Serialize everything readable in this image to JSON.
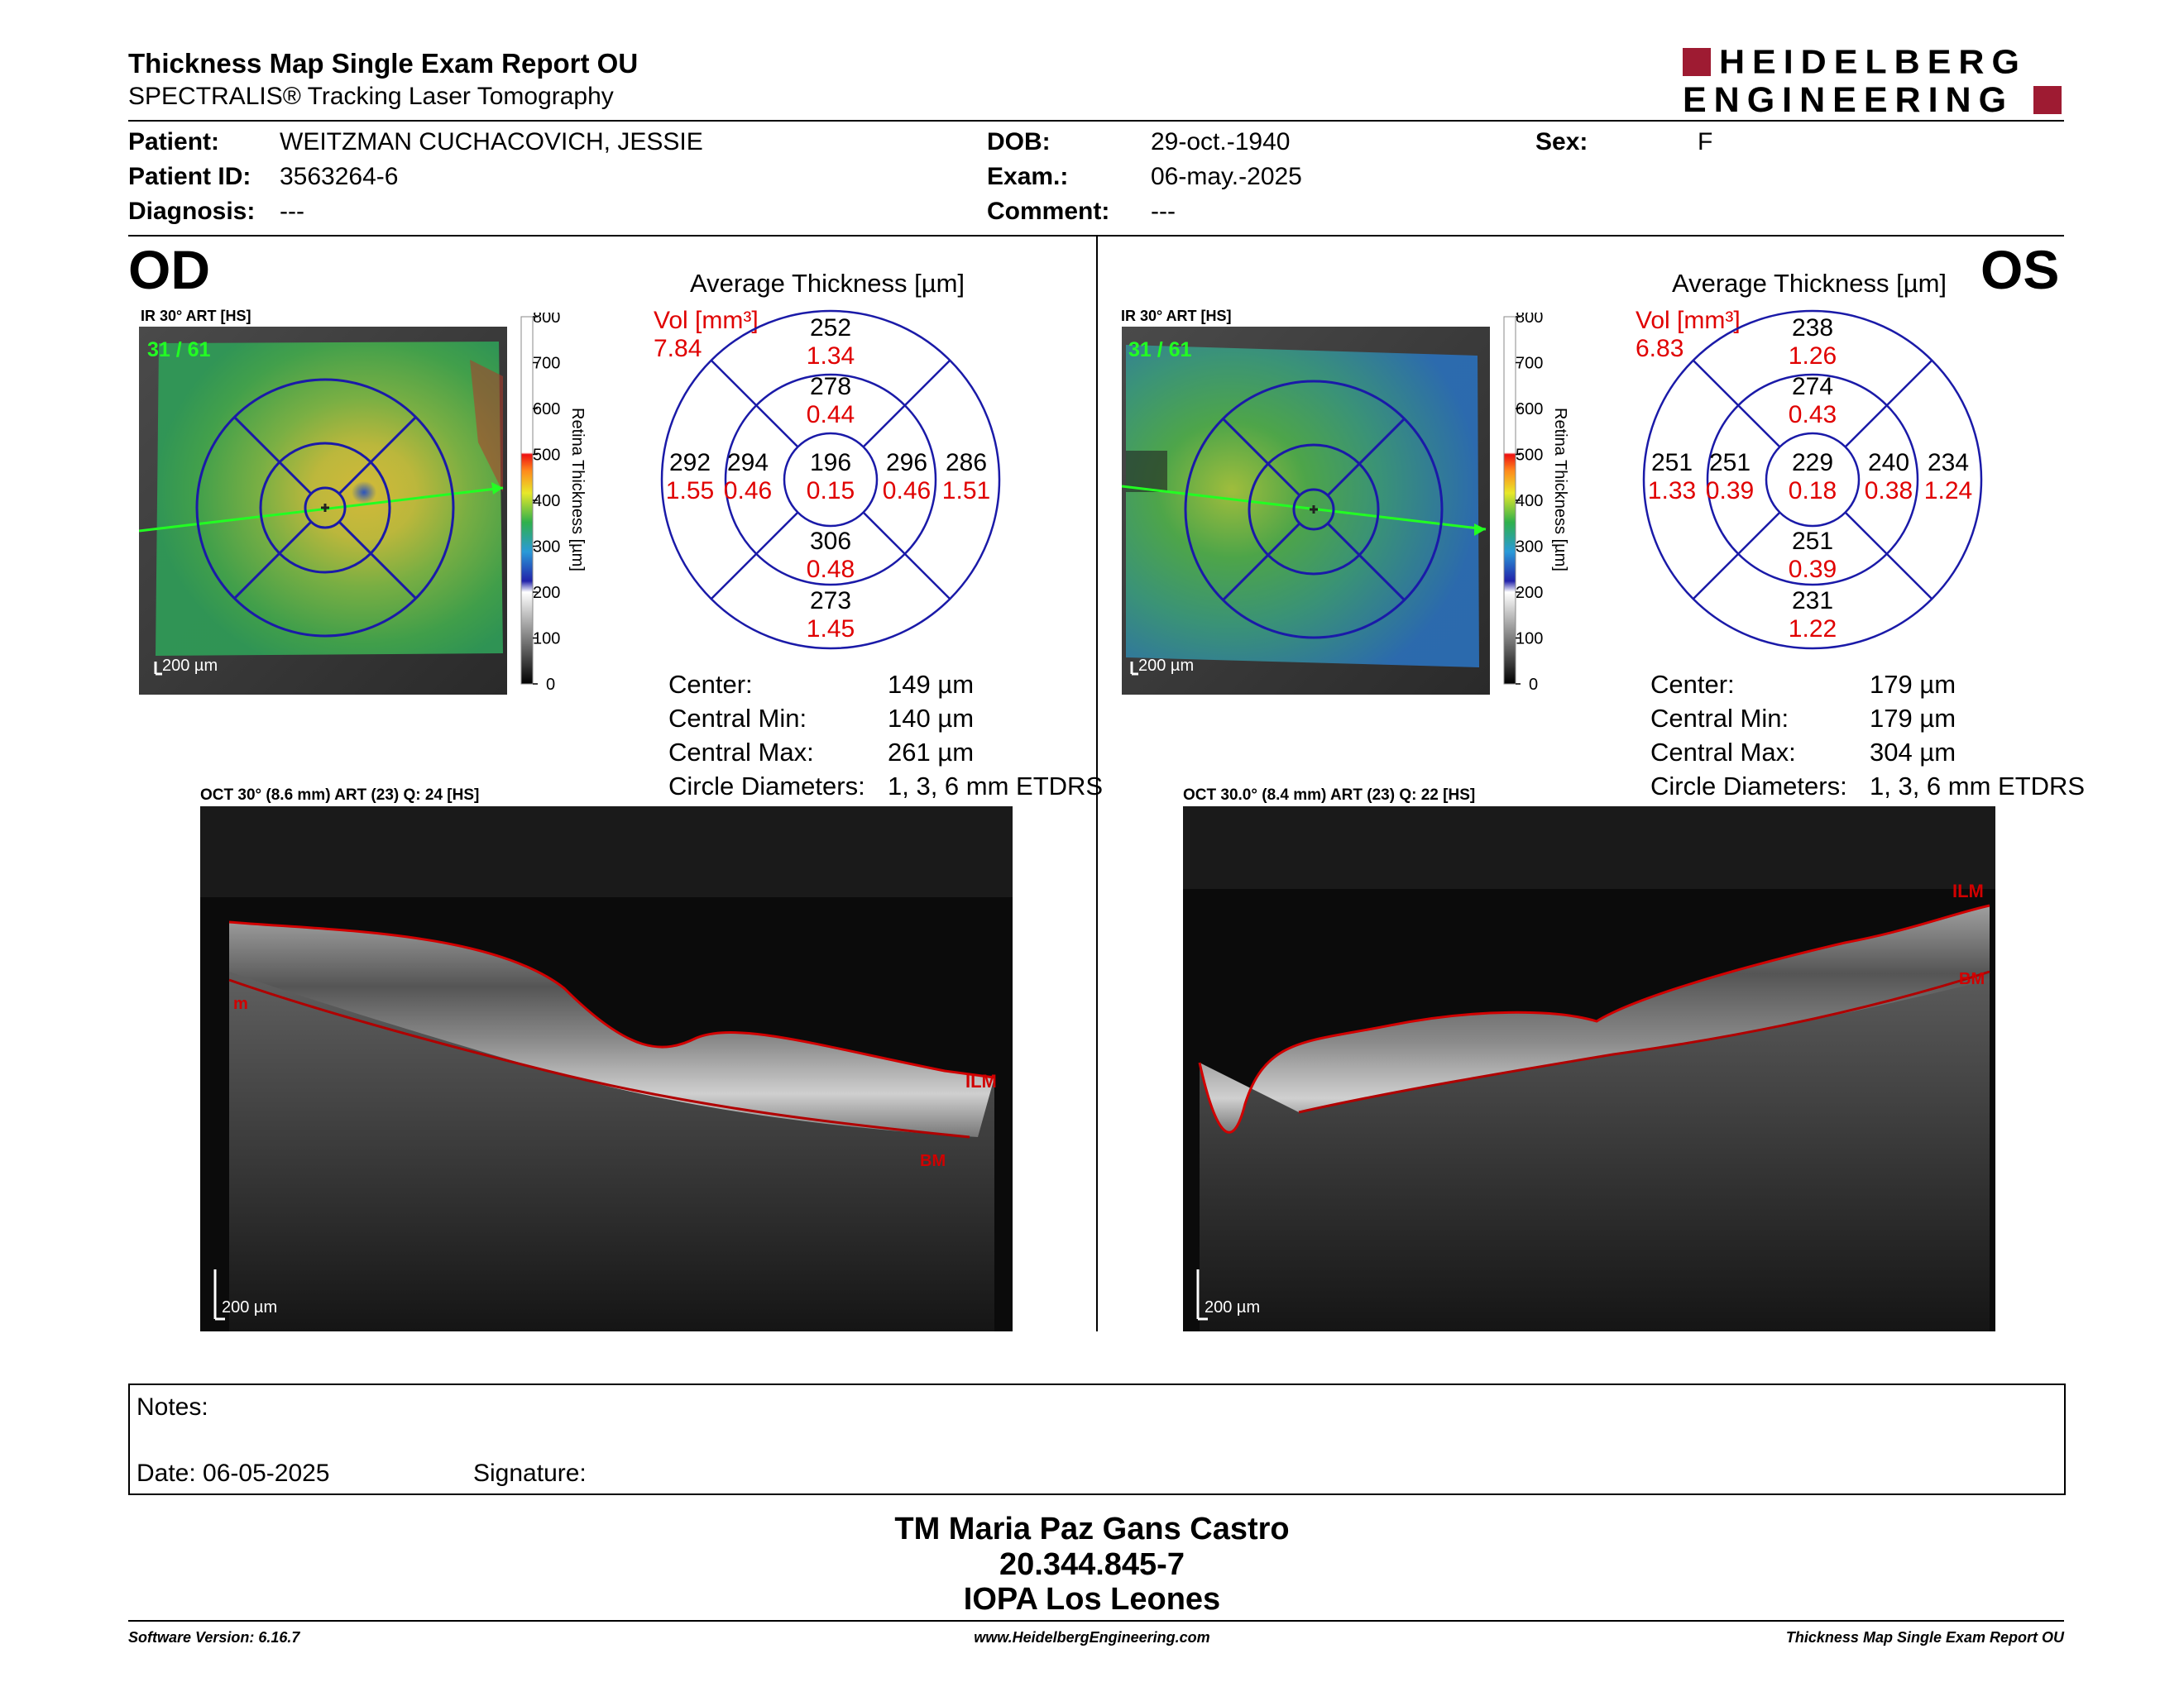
{
  "header": {
    "title": "Thickness Map Single Exam Report OU",
    "subtitle": "SPECTRALIS® Tracking Laser Tomography",
    "logo_line1": "HEIDELBERG",
    "logo_line2": "ENGINEERING",
    "brand_color": "#9e1b32"
  },
  "patient": {
    "patient_label": "Patient:",
    "patient_value": "WEITZMAN CUCHACOVICH, JESSIE",
    "id_label": "Patient ID:",
    "id_value": "3563264-6",
    "diag_label": "Diagnosis:",
    "diag_value": "---",
    "dob_label": "DOB:",
    "dob_value": "29-oct.-1940",
    "exam_label": "Exam.:",
    "exam_value": "06-may.-2025",
    "comment_label": "Comment:",
    "comment_value": "---",
    "sex_label": "Sex:",
    "sex_value": "F"
  },
  "colorbar": {
    "title": "Retina  Thickness [µm]",
    "ticks": [
      "800",
      "700",
      "600",
      "500",
      "400",
      "300",
      "200",
      "100",
      "0"
    ]
  },
  "od": {
    "eye": "OD",
    "ir_label": "IR 30° ART [HS]",
    "scan_counter": "31 / 61",
    "ir_scale": "200 µm",
    "avg_title": "Average Thickness [µm]",
    "vol_label": "Vol [mm³]",
    "vol_total": "7.84",
    "sectors": {
      "outer_top": {
        "t": "252",
        "v": "1.34"
      },
      "inner_top": {
        "t": "278",
        "v": "0.44"
      },
      "outer_left": {
        "t": "292",
        "v": "1.55"
      },
      "inner_left": {
        "t": "294",
        "v": "0.46"
      },
      "center": {
        "t": "196",
        "v": "0.15"
      },
      "inner_right": {
        "t": "296",
        "v": "0.46"
      },
      "outer_right": {
        "t": "286",
        "v": "1.51"
      },
      "inner_bottom": {
        "t": "306",
        "v": "0.48"
      },
      "outer_bottom": {
        "t": "273",
        "v": "1.45"
      }
    },
    "stats": [
      {
        "label": "Center:",
        "value": "149 µm"
      },
      {
        "label": "Central Min:",
        "value": "140 µm"
      },
      {
        "label": "Central Max:",
        "value": "261 µm"
      },
      {
        "label": "Circle Diameters:",
        "value": "1, 3, 6 mm ETDRS"
      }
    ],
    "oct_label": "OCT 30° (8.6 mm) ART (23) Q: 24 [HS]",
    "oct_scale": "200 µm",
    "seg_ilm": "ILM",
    "seg_bm": "BM",
    "seg_left": "m"
  },
  "os": {
    "eye": "OS",
    "ir_label": "IR 30° ART [HS]",
    "scan_counter": "31 / 61",
    "ir_scale": "200 µm",
    "avg_title": "Average Thickness [µm]",
    "vol_label": "Vol [mm³]",
    "vol_total": "6.83",
    "sectors": {
      "outer_top": {
        "t": "238",
        "v": "1.26"
      },
      "inner_top": {
        "t": "274",
        "v": "0.43"
      },
      "outer_left": {
        "t": "251",
        "v": "1.33"
      },
      "inner_left": {
        "t": "251",
        "v": "0.39"
      },
      "center": {
        "t": "229",
        "v": "0.18"
      },
      "inner_right": {
        "t": "240",
        "v": "0.38"
      },
      "outer_right": {
        "t": "234",
        "v": "1.24"
      },
      "inner_bottom": {
        "t": "251",
        "v": "0.39"
      },
      "outer_bottom": {
        "t": "231",
        "v": "1.22"
      }
    },
    "stats": [
      {
        "label": "Center:",
        "value": "179 µm"
      },
      {
        "label": "Central Min:",
        "value": "179 µm"
      },
      {
        "label": "Central Max:",
        "value": "304 µm"
      },
      {
        "label": "Circle Diameters:",
        "value": "1, 3, 6 mm ETDRS"
      }
    ],
    "oct_label": "OCT 30.0° (8.4 mm) ART (23) Q: 22 [HS]",
    "oct_scale": "200 µm",
    "seg_ilm": "ILM",
    "seg_bm": "BM"
  },
  "notes": {
    "notes_label": "Notes:",
    "date_label": "Date: 06-05-2025",
    "signature_label": "Signature:"
  },
  "signer": {
    "name": "TM Maria Paz Gans Castro",
    "rut": "20.344.845-7",
    "place": "IOPA Los Leones"
  },
  "footer": {
    "software": "Software Version: 6.16.7",
    "url": "www.HeidelbergEngineering.com",
    "report": "Thickness Map Single Exam Report OU"
  }
}
